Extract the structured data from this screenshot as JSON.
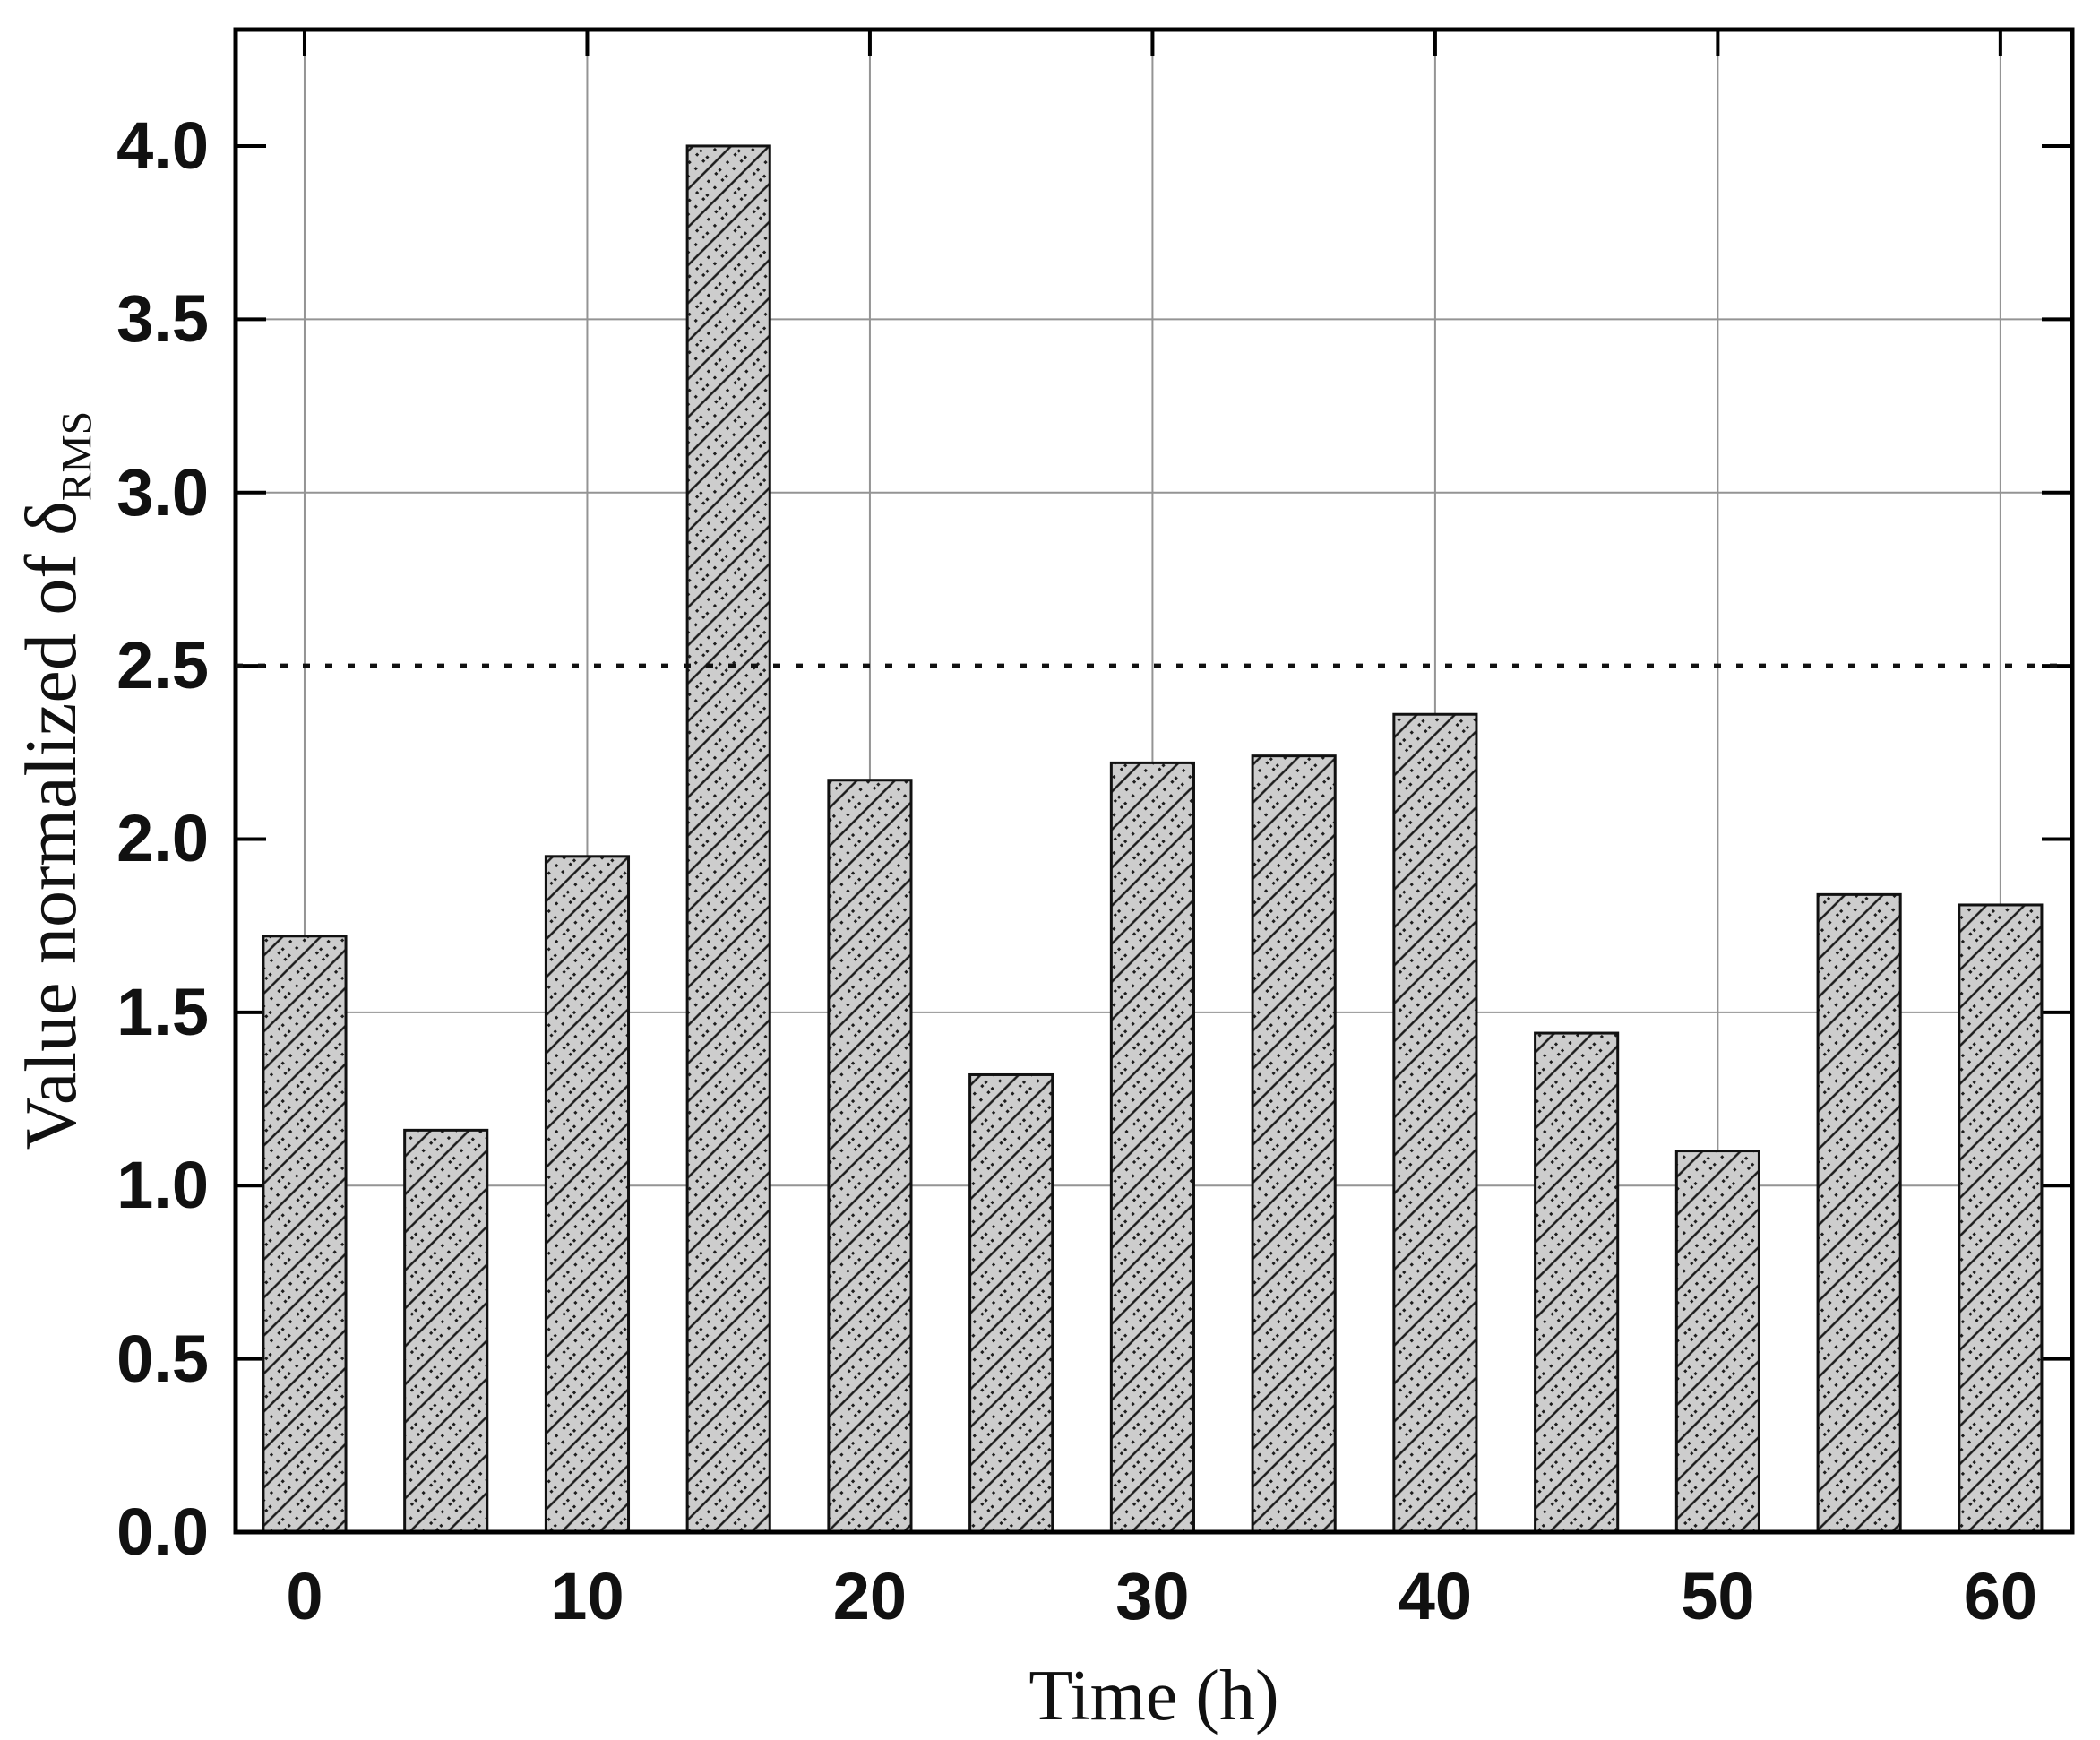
{
  "chart_data": {
    "type": "bar",
    "title": "",
    "xlabel": "Time (h)",
    "ylabel": {
      "prefix": "Value normalized of ",
      "symbol": "δ",
      "subscript": "RMS"
    },
    "x": [
      0,
      5,
      10,
      15,
      20,
      25,
      30,
      35,
      40,
      45,
      50,
      55,
      60
    ],
    "values": [
      1.72,
      1.16,
      1.95,
      4.0,
      2.17,
      1.32,
      2.22,
      2.24,
      2.36,
      1.44,
      1.1,
      1.84,
      1.81
    ],
    "bar_width_x_units": 2.92,
    "x_ticks": [
      0,
      10,
      20,
      30,
      40,
      50,
      60
    ],
    "y_ticks": [
      0.0,
      0.5,
      1.0,
      1.5,
      2.0,
      2.5,
      3.0,
      3.5,
      4.0
    ],
    "xlim": [
      -2.44,
      62.54
    ],
    "ylim": [
      0,
      4.336
    ],
    "grid": {
      "x_gridlines": [
        0,
        10,
        20,
        30,
        40,
        50,
        60
      ],
      "y_gridlines": [
        1.0,
        1.5,
        3.0,
        3.5
      ]
    },
    "reference_line": {
      "y": 2.5,
      "style": "dotted"
    },
    "legend": "none",
    "colors": {
      "background": "#ffffff",
      "bar_fill": "#cdcdcd",
      "hatch": "#1c1c1c",
      "outline": "#111111",
      "grid": "#949494",
      "frame": "#000000",
      "dotted_line": "#111111",
      "text": "#111111"
    }
  }
}
